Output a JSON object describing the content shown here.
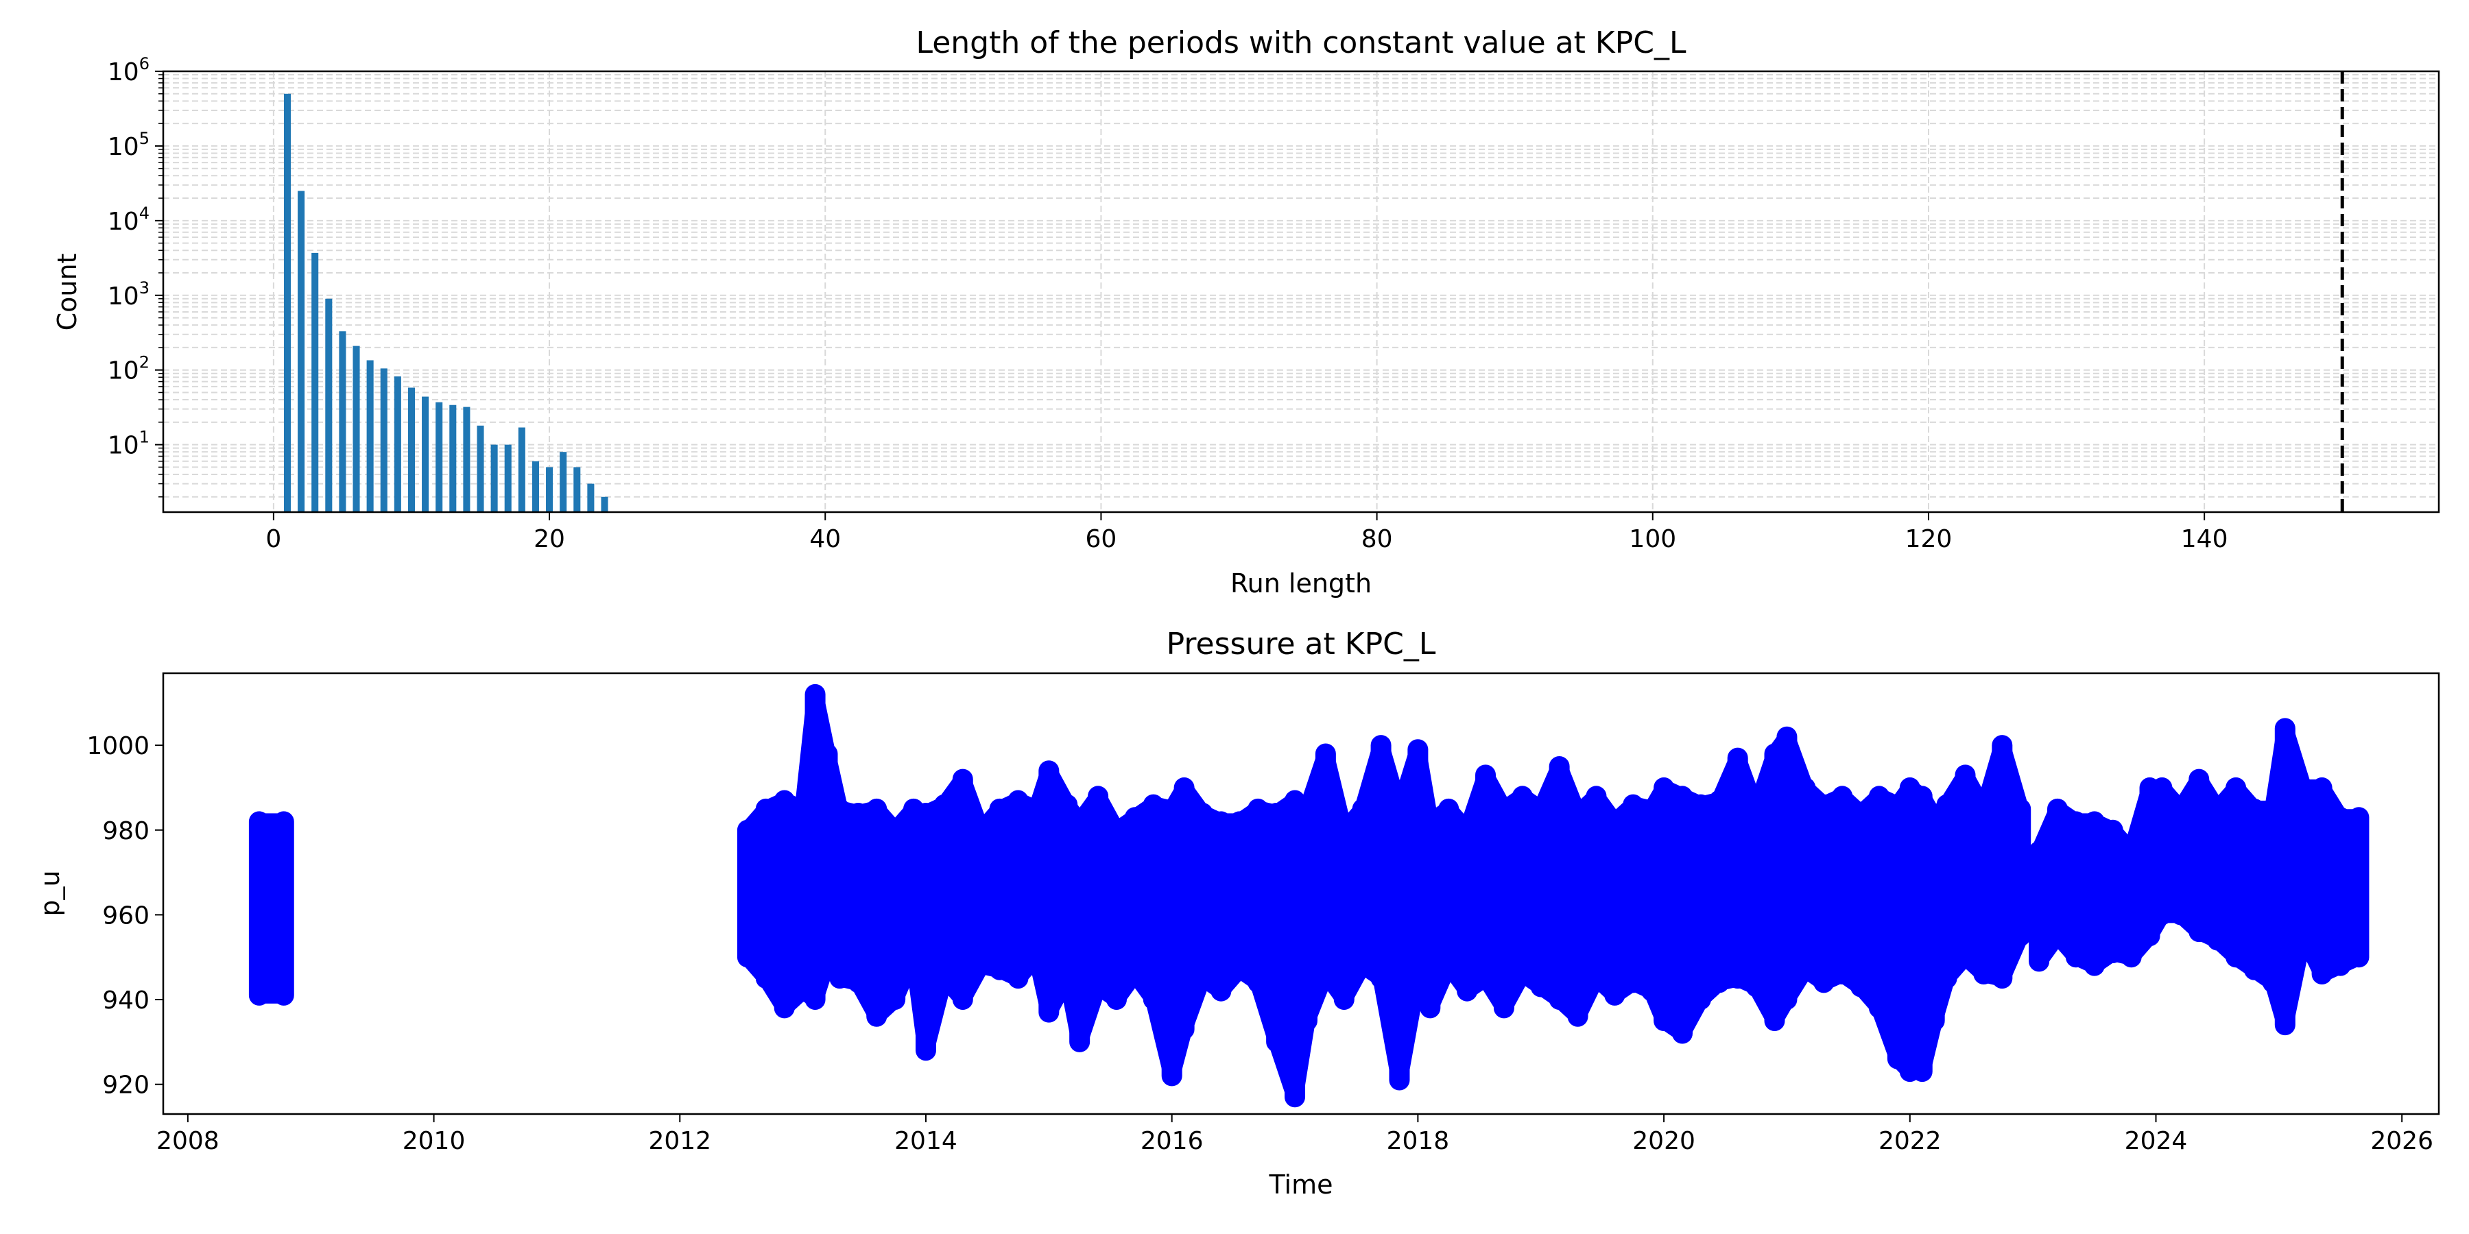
{
  "chart_data": [
    {
      "type": "bar",
      "title": "Length of the periods with constant value at KPC_L",
      "xlabel": "Run length",
      "ylabel": "Count",
      "yscale": "log",
      "xlim": [
        -8,
        157
      ],
      "ylim": [
        1.25,
        1000000
      ],
      "xticks": [
        "0",
        "20",
        "40",
        "60",
        "80",
        "100",
        "120",
        "140"
      ],
      "yticks": [
        {
          "base": "10",
          "exp": "1",
          "value": 10
        },
        {
          "base": "10",
          "exp": "2",
          "value": 100
        },
        {
          "base": "10",
          "exp": "3",
          "value": 1000
        },
        {
          "base": "10",
          "exp": "4",
          "value": 10000
        },
        {
          "base": "10",
          "exp": "5",
          "value": 100000
        },
        {
          "base": "10",
          "exp": "6",
          "value": 1000000
        }
      ],
      "grid": true,
      "bar_color": "#1f77b4",
      "x": [
        1,
        2,
        3,
        4,
        5,
        6,
        7,
        8,
        9,
        10,
        11,
        12,
        13,
        14,
        15,
        16,
        17,
        18,
        19,
        20,
        21,
        22,
        23,
        24
      ],
      "values": [
        500000,
        25000,
        3700,
        900,
        330,
        210,
        135,
        105,
        82,
        58,
        44,
        37,
        34,
        32,
        18,
        10,
        10,
        17,
        6,
        5,
        8,
        5,
        3,
        2
      ],
      "threshold_line": {
        "x": 150,
        "style": "dashed",
        "color": "#000000"
      }
    },
    {
      "type": "line",
      "title": "Pressure at KPC_L",
      "xlabel": "Time",
      "ylabel": "p_u",
      "xlim": [
        2007.8,
        2026.3
      ],
      "ylim": [
        913,
        1017
      ],
      "xticks": [
        "2008",
        "2010",
        "2012",
        "2014",
        "2016",
        "2018",
        "2020",
        "2022",
        "2024",
        "2026"
      ],
      "yticks": [
        "920",
        "940",
        "960",
        "980",
        "1000"
      ],
      "grid": false,
      "series": [
        {
          "color": "#0000ff",
          "marker": "circle",
          "segments": [
            {
              "x": [
                2008.58,
                2008.78
              ],
              "min": [
                941,
                941
              ],
              "max": [
                982,
                982
              ]
            },
            {
              "x": [
                2012.55,
                2012.7,
                2012.85,
                2013.0,
                2013.1,
                2013.2,
                2013.3,
                2013.45,
                2013.6,
                2013.75,
                2013.9,
                2014.0,
                2014.15,
                2014.3,
                2014.45,
                2014.6,
                2014.75,
                2014.9,
                2015.0,
                2015.15,
                2015.25,
                2015.4,
                2015.55,
                2015.7,
                2015.85,
                2016.0,
                2016.1,
                2016.25,
                2016.4,
                2016.55,
                2016.7,
                2016.85,
                2017.0,
                2017.1,
                2017.25,
                2017.4,
                2017.55,
                2017.7,
                2017.85,
                2018.0,
                2018.1,
                2018.25,
                2018.4,
                2018.55,
                2018.7,
                2018.85,
                2019.0,
                2019.15,
                2019.3,
                2019.45,
                2019.6,
                2019.75,
                2019.9,
                2020.0,
                2020.15,
                2020.3,
                2020.45,
                2020.6,
                2020.75,
                2020.9,
                2021.0,
                2021.15,
                2021.3,
                2021.45,
                2021.6,
                2021.75,
                2021.9,
                2022.0,
                2022.1,
                2022.2,
                2022.3,
                2022.45,
                2022.6,
                2022.75,
                2022.9
              ],
              "min": [
                950,
                945,
                938,
                942,
                940,
                949,
                945,
                944,
                936,
                940,
                950,
                928,
                945,
                940,
                948,
                947,
                945,
                950,
                937,
                945,
                930,
                943,
                940,
                946,
                940,
                922,
                933,
                945,
                942,
                947,
                944,
                930,
                917,
                935,
                946,
                940,
                948,
                945,
                921,
                945,
                938,
                948,
                942,
                945,
                938,
                946,
                943,
                940,
                936,
                945,
                941,
                944,
                942,
                935,
                932,
                940,
                944,
                945,
                943,
                935,
                940,
                947,
                944,
                946,
                943,
                938,
                926,
                923,
                923,
                935,
                945,
                950,
                946,
                945,
                955
              ],
              "max": [
                980,
                985,
                987,
                985,
                1012,
                998,
                985,
                984,
                985,
                980,
                985,
                984,
                986,
                992,
                980,
                985,
                987,
                985,
                994,
                986,
                982,
                988,
                980,
                983,
                986,
                985,
                990,
                984,
                982,
                982,
                985,
                984,
                987,
                985,
                998,
                980,
                985,
                1000,
                985,
                999,
                982,
                985,
                980,
                993,
                985,
                988,
                985,
                995,
                984,
                988,
                982,
                986,
                985,
                990,
                988,
                986,
                987,
                997,
                985,
                998,
                1002,
                990,
                986,
                988,
                984,
                988,
                986,
                990,
                988,
                983,
                986,
                993,
                985,
                1000,
                985
              ]
            },
            {
              "x": [
                2023.05,
                2023.2,
                2023.35,
                2023.5,
                2023.65,
                2023.8,
                2023.95,
                2024.05,
                2024.2,
                2024.35,
                2024.5,
                2024.65,
                2024.8,
                2024.95,
                2025.05,
                2025.2,
                2025.35,
                2025.5,
                2025.65
              ],
              "min": [
                949,
                955,
                950,
                948,
                951,
                950,
                955,
                960,
                960,
                956,
                954,
                950,
                947,
                944,
                934,
                955,
                946,
                948,
                950
              ],
              "max": [
                975,
                985,
                982,
                982,
                980,
                975,
                990,
                990,
                985,
                992,
                985,
                990,
                985,
                985,
                1004,
                990,
                990,
                983,
                983
              ]
            }
          ]
        }
      ]
    }
  ]
}
